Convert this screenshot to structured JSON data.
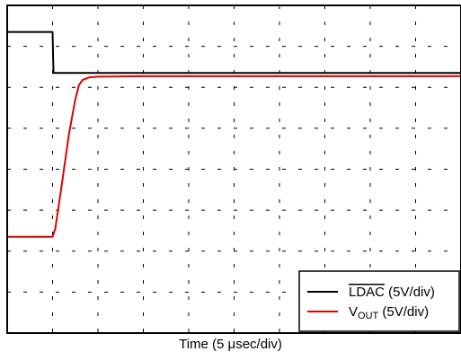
{
  "chart_data": {
    "type": "line",
    "xlabel": "Time (5 μsec/div)",
    "xlim": [
      0,
      50
    ],
    "ylim": [
      0,
      8
    ],
    "grid": true,
    "grid_divisions": {
      "x": 10,
      "y": 8
    },
    "legend_placement": "bottom-right",
    "series": [
      {
        "name": "LDAC (5V/div)",
        "color": "#000000",
        "x": [
          0,
          5.0,
          5.1,
          50
        ],
        "y": [
          7.35,
          7.35,
          6.35,
          6.35
        ]
      },
      {
        "name": "VOUT (5V/div)",
        "color": "#e00000",
        "x": [
          0,
          5.0,
          5.3,
          6.0,
          6.8,
          7.5,
          7.9,
          8.3,
          9.0,
          10.0,
          15.0,
          20.0,
          30.0,
          40.0,
          50.0
        ],
        "y": [
          2.35,
          2.35,
          2.55,
          3.6,
          4.85,
          5.7,
          6.05,
          6.18,
          6.24,
          6.26,
          6.27,
          6.27,
          6.27,
          6.27,
          6.27
        ]
      }
    ],
    "legend": {
      "ldac_prefix": "",
      "ldac_name": "LDAC",
      "ldac_suffix": " (5V/div)",
      "vout_prefix": "V",
      "vout_sub": "OUT",
      "vout_suffix": " (5V/div)"
    }
  }
}
